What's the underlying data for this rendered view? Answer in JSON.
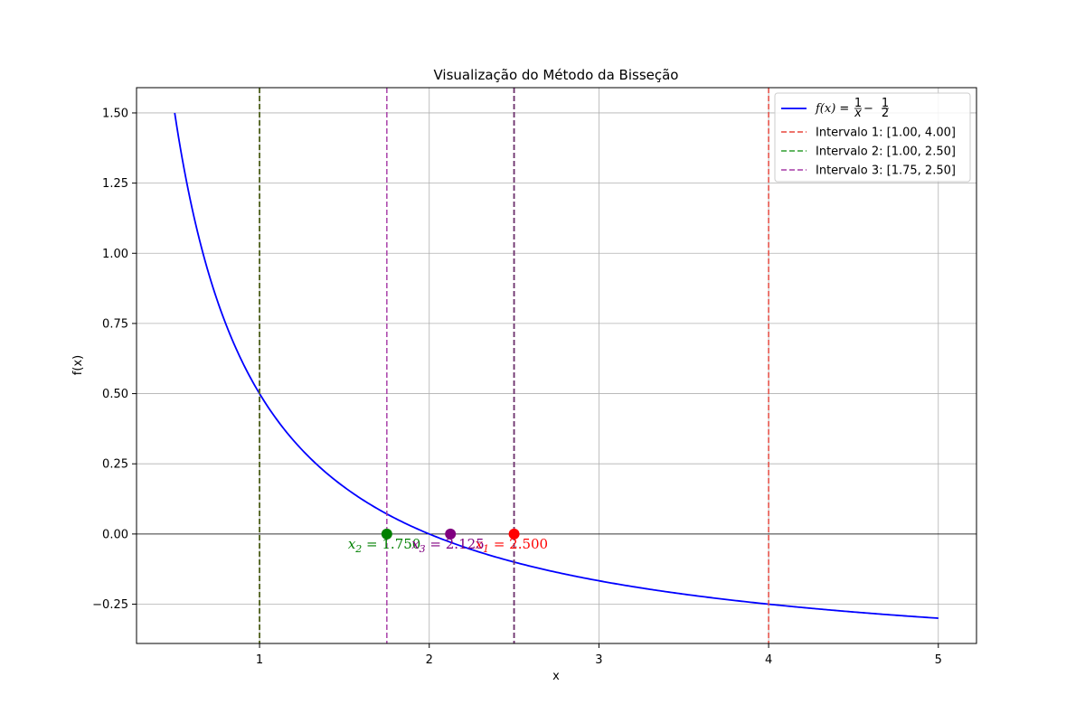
{
  "chart_data": {
    "type": "line",
    "title": "Visualização do Método da Bisseção",
    "xlabel": "x",
    "ylabel": "f(x)",
    "xlim": [
      0.275,
      5.225
    ],
    "ylim": [
      -0.39,
      1.59
    ],
    "xticks": [
      1,
      2,
      3,
      4,
      5
    ],
    "yticks": [
      -0.25,
      0.0,
      0.25,
      0.5,
      0.75,
      1.0,
      1.25,
      1.5
    ],
    "xtick_labels": [
      "1",
      "2",
      "3",
      "4",
      "5"
    ],
    "ytick_labels": [
      "−0.25",
      "0.00",
      "0.25",
      "0.50",
      "0.75",
      "1.00",
      "1.25",
      "1.50"
    ],
    "grid": true,
    "zero_line": true,
    "legend_position": "top-right",
    "function": {
      "name": "f(x) = 1/x − 1/2",
      "expression": "1/x - 1/2",
      "domain": [
        0.5,
        5
      ],
      "color": "#0000ff",
      "label_parts": {
        "lhs": "f(x)",
        "eq": " = ",
        "n1": "1",
        "d1": "x",
        "minus": " − ",
        "n2": "1",
        "d2": "2"
      }
    },
    "intervals": [
      {
        "name": "Intervalo 1: [1.00, 4.00]",
        "a": 1.0,
        "b": 4.0,
        "color": "#e8463c"
      },
      {
        "name": "Intervalo 2: [1.00, 2.50]",
        "a": 1.0,
        "b": 2.5,
        "color": "#2e9e2e"
      },
      {
        "name": "Intervalo 3: [1.75, 2.50]",
        "a": 1.75,
        "b": 2.5,
        "color": "#a63aa6"
      }
    ],
    "overlap_color": "#4f5b1e",
    "overlap_color_2": "#6a2f6a",
    "points": [
      {
        "base": "x",
        "sub": "1",
        "value_text": " = 2.500",
        "x": 2.5,
        "y": 0,
        "color": "#ff0000"
      },
      {
        "base": "x",
        "sub": "2",
        "value_text": " = 1.750",
        "x": 1.75,
        "y": 0,
        "color": "#008000"
      },
      {
        "base": "x",
        "sub": "3",
        "value_text": " = 2.125",
        "x": 2.125,
        "y": 0,
        "color": "#800080"
      }
    ]
  }
}
